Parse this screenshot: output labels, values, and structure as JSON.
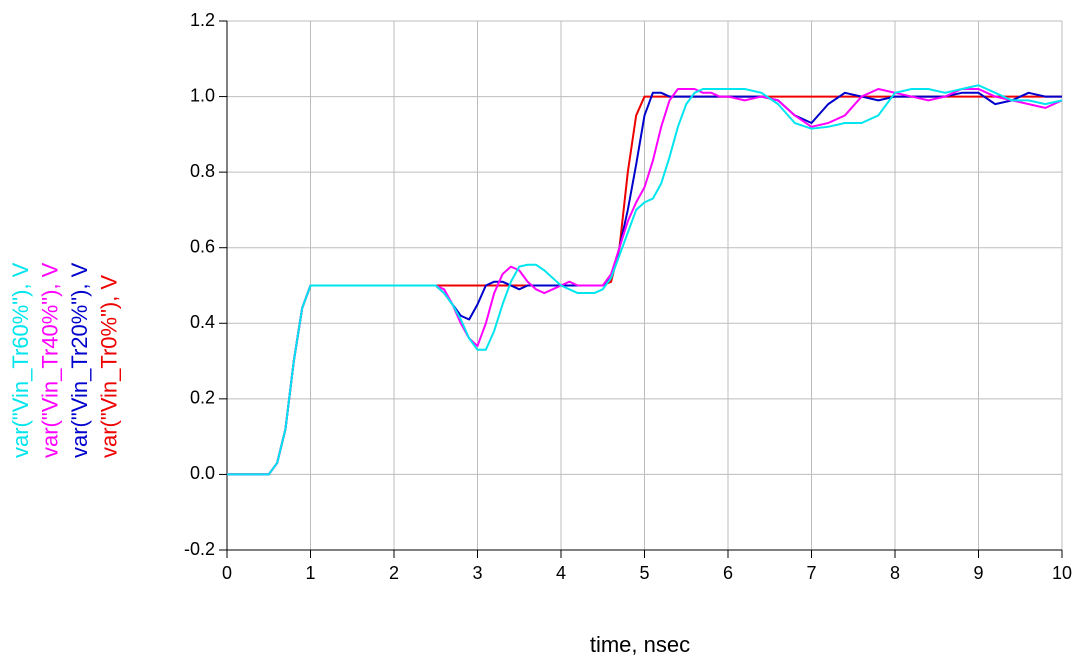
{
  "chart_data": {
    "type": "line",
    "x_label": "time, nsec",
    "x": [
      0,
      0.5,
      0.6,
      0.7,
      0.8,
      0.9,
      1.0,
      2.5,
      2.6,
      2.7,
      2.8,
      2.9,
      3.0,
      3.1,
      3.2,
      3.3,
      3.4,
      3.5,
      3.6,
      3.7,
      3.8,
      3.9,
      4.0,
      4.1,
      4.2,
      4.3,
      4.4,
      4.5,
      4.6,
      4.7,
      4.8,
      4.9,
      5.0,
      5.1,
      5.2,
      5.3,
      5.4,
      5.5,
      5.6,
      5.7,
      5.8,
      5.9,
      6.0,
      6.2,
      6.4,
      6.6,
      6.8,
      7.0,
      7.2,
      7.4,
      7.6,
      7.8,
      8.0,
      8.2,
      8.4,
      8.6,
      8.8,
      9.0,
      9.2,
      9.4,
      9.6,
      9.8,
      10
    ],
    "series": [
      {
        "name": "var(\"Vin_Tr60%\"), V",
        "color": "#00e5ee",
        "values": [
          0,
          0,
          0.03,
          0.12,
          0.3,
          0.44,
          0.5,
          0.5,
          0.48,
          0.45,
          0.41,
          0.36,
          0.33,
          0.33,
          0.38,
          0.45,
          0.51,
          0.55,
          0.555,
          0.555,
          0.54,
          0.52,
          0.5,
          0.49,
          0.48,
          0.48,
          0.48,
          0.49,
          0.52,
          0.58,
          0.64,
          0.7,
          0.72,
          0.73,
          0.77,
          0.84,
          0.92,
          0.98,
          1.01,
          1.02,
          1.02,
          1.02,
          1.02,
          1.02,
          1.01,
          0.98,
          0.93,
          0.915,
          0.92,
          0.93,
          0.93,
          0.95,
          1.01,
          1.02,
          1.02,
          1.01,
          1.02,
          1.03,
          1.01,
          0.99,
          0.99,
          0.98,
          0.99
        ]
      },
      {
        "name": "var(\"Vin_Tr40%\"), V",
        "color": "#ff00ff",
        "values": [
          0,
          0,
          0.03,
          0.12,
          0.3,
          0.44,
          0.5,
          0.5,
          0.49,
          0.45,
          0.4,
          0.36,
          0.34,
          0.4,
          0.48,
          0.53,
          0.55,
          0.54,
          0.51,
          0.49,
          0.48,
          0.49,
          0.5,
          0.51,
          0.5,
          0.5,
          0.5,
          0.5,
          0.53,
          0.6,
          0.67,
          0.72,
          0.76,
          0.83,
          0.92,
          0.99,
          1.02,
          1.02,
          1.02,
          1.01,
          1.01,
          1.0,
          1.0,
          0.99,
          1.0,
          0.99,
          0.95,
          0.92,
          0.93,
          0.95,
          1.0,
          1.02,
          1.01,
          1.0,
          0.99,
          1.0,
          1.02,
          1.02,
          1.0,
          0.99,
          0.98,
          0.97,
          0.99
        ]
      },
      {
        "name": "var(\"Vin_Tr20%\"), V",
        "color": "#0000cc",
        "values": [
          0,
          0,
          0.03,
          0.12,
          0.3,
          0.44,
          0.5,
          0.5,
          0.48,
          0.45,
          0.42,
          0.41,
          0.45,
          0.5,
          0.51,
          0.51,
          0.5,
          0.49,
          0.5,
          0.5,
          0.5,
          0.5,
          0.5,
          0.5,
          0.5,
          0.5,
          0.5,
          0.5,
          0.52,
          0.6,
          0.7,
          0.82,
          0.95,
          1.01,
          1.01,
          1.0,
          1.0,
          1.0,
          1.0,
          1.0,
          1.0,
          1.0,
          1.0,
          1.0,
          1.0,
          0.99,
          0.95,
          0.93,
          0.98,
          1.01,
          1.0,
          0.99,
          1.0,
          1.0,
          1.0,
          1.0,
          1.01,
          1.01,
          0.98,
          0.99,
          1.01,
          1.0,
          1.0
        ]
      },
      {
        "name": "var(\"Vin_Tr0%\"), V",
        "color": "#ee0000",
        "values": [
          0,
          0,
          0.03,
          0.12,
          0.3,
          0.44,
          0.5,
          0.5,
          0.5,
          0.5,
          0.5,
          0.5,
          0.5,
          0.5,
          0.5,
          0.5,
          0.5,
          0.5,
          0.5,
          0.5,
          0.5,
          0.5,
          0.5,
          0.5,
          0.5,
          0.5,
          0.5,
          0.5,
          0.51,
          0.6,
          0.8,
          0.95,
          1.0,
          1.0,
          1.0,
          1.0,
          1.0,
          1.0,
          1.0,
          1.0,
          1.0,
          1.0,
          1.0,
          1.0,
          1.0,
          1.0,
          1.0,
          1.0,
          1.0,
          1.0,
          1.0,
          1.0,
          1.0,
          1.0,
          1.0,
          1.0,
          1.0,
          1.0,
          1.0,
          1.0,
          1.0,
          1.0,
          1.0
        ]
      }
    ],
    "xlim": [
      0,
      10
    ],
    "xticks": [
      0,
      1,
      2,
      3,
      4,
      5,
      6,
      7,
      8,
      9,
      10
    ],
    "ylim": [
      -0.2,
      1.2
    ],
    "yticks": [
      -0.2,
      {
        "value": 0,
        "label": "0.0"
      },
      0.2,
      0.4,
      0.6,
      0.8,
      {
        "value": 1,
        "label": "1.0"
      },
      1.2
    ],
    "grid": true
  }
}
